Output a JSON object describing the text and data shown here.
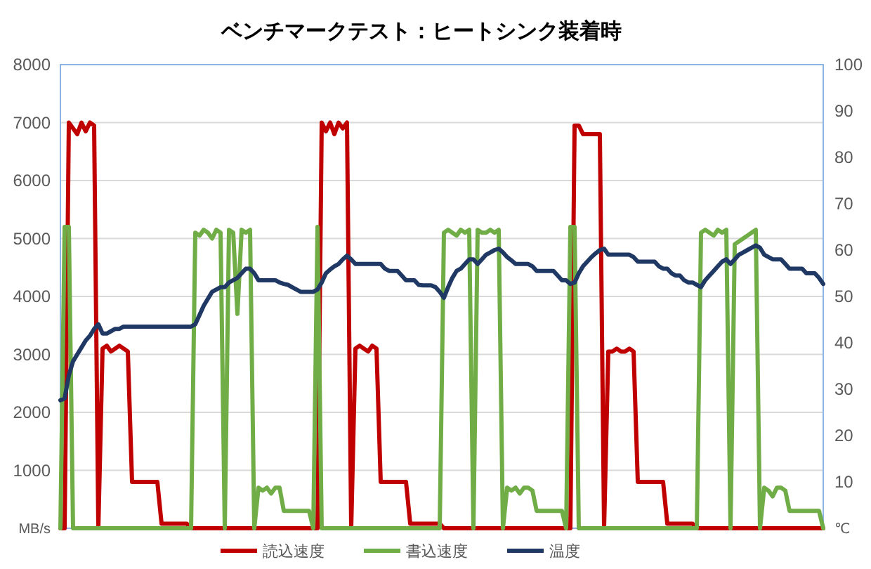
{
  "chart_data": {
    "type": "line",
    "title": "ベンチマークテスト：ヒートシンク装着時",
    "categories": [
      null,
      null,
      null,
      null,
      null,
      null,
      null,
      null,
      null,
      null,
      null,
      null,
      null,
      null,
      null,
      null,
      null,
      null,
      null,
      null,
      null,
      null,
      null,
      null,
      null,
      null,
      null,
      null,
      null,
      null,
      null,
      null,
      null,
      null,
      null,
      null,
      null,
      null,
      null,
      null,
      null,
      null,
      null,
      null,
      null,
      null,
      null,
      null,
      null,
      null,
      null,
      null,
      null,
      null,
      null,
      null,
      null,
      null,
      null,
      null,
      null,
      null,
      null,
      null,
      null,
      null,
      null,
      null,
      null,
      null,
      null,
      null,
      null,
      null,
      null,
      null,
      null,
      null,
      null,
      null,
      null,
      null,
      null,
      null,
      null,
      null,
      null,
      null,
      null,
      null,
      null,
      null,
      null,
      null,
      null,
      null,
      null,
      null,
      null,
      null,
      null,
      null,
      null,
      null,
      null,
      null,
      null,
      null,
      null,
      null,
      null,
      null,
      null,
      null,
      null,
      null,
      null,
      null,
      null,
      null,
      null,
      null,
      null,
      null,
      null,
      null,
      null,
      null,
      null,
      null,
      null,
      null,
      null,
      null,
      null,
      null,
      null,
      null,
      null,
      null,
      null,
      null,
      null,
      null,
      null,
      null,
      null,
      null,
      null,
      null,
      null,
      null,
      null,
      null,
      null,
      null,
      null,
      null,
      null,
      null,
      null,
      null,
      null,
      null,
      null,
      null,
      null,
      null,
      null,
      null,
      null,
      null,
      null,
      null,
      null,
      null,
      null,
      null,
      null,
      null,
      null,
      null
    ],
    "series": [
      {
        "name": "読込速度",
        "color": "#c00000",
        "values": [
          0,
          0,
          7000,
          6900,
          6800,
          7000,
          6850,
          7000,
          6950,
          0,
          3100,
          3150,
          3050,
          3100,
          3150,
          3100,
          3050,
          800,
          800,
          800,
          800,
          800,
          800,
          800,
          80,
          80,
          80,
          80,
          80,
          80,
          80,
          0,
          0,
          0,
          0,
          0,
          0,
          0,
          0,
          0,
          0,
          0,
          0,
          0,
          0,
          0,
          0,
          0,
          0,
          0,
          0,
          0,
          0,
          0,
          0,
          0,
          0,
          0,
          0,
          0,
          0,
          0,
          7000,
          6850,
          7000,
          6800,
          7000,
          6900,
          7000,
          0,
          3100,
          3150,
          3100,
          3050,
          3150,
          3100,
          800,
          800,
          800,
          800,
          800,
          800,
          800,
          80,
          80,
          80,
          80,
          80,
          80,
          80,
          80,
          0,
          0,
          0,
          0,
          0,
          0,
          0,
          0,
          0,
          0,
          0,
          0,
          0,
          0,
          0,
          0,
          0,
          0,
          0,
          0,
          0,
          0,
          0,
          0,
          0,
          0,
          0,
          0,
          0,
          0,
          0,
          6950,
          6950,
          6800,
          6800,
          6800,
          6800,
          6800,
          0,
          3050,
          3050,
          3100,
          3050,
          3050,
          3100,
          3050,
          800,
          800,
          800,
          800,
          800,
          800,
          800,
          80,
          80,
          80,
          80,
          80,
          80,
          80,
          0,
          0,
          0,
          0,
          0,
          0,
          0,
          0,
          0,
          0,
          0,
          0,
          0,
          0,
          0,
          0,
          0,
          0,
          0,
          0,
          0,
          0,
          0,
          0,
          0,
          0,
          0,
          0,
          0,
          0,
          0
        ]
      },
      {
        "name": "書込速度",
        "color": "#70ad47",
        "values": [
          0,
          5200,
          5200,
          0,
          0,
          0,
          0,
          0,
          0,
          0,
          0,
          0,
          0,
          0,
          0,
          0,
          0,
          0,
          0,
          0,
          0,
          0,
          0,
          0,
          0,
          0,
          0,
          0,
          0,
          0,
          0,
          0,
          5100,
          5050,
          5150,
          5100,
          5000,
          5150,
          5100,
          0,
          5150,
          5100,
          3700,
          5150,
          5100,
          5150,
          0,
          700,
          650,
          700,
          600,
          700,
          700,
          300,
          300,
          300,
          300,
          300,
          300,
          300,
          0,
          5200,
          0,
          0,
          0,
          0,
          0,
          0,
          0,
          0,
          0,
          0,
          0,
          0,
          0,
          0,
          0,
          0,
          0,
          0,
          0,
          0,
          0,
          0,
          0,
          0,
          0,
          0,
          0,
          0,
          0,
          5100,
          5150,
          5100,
          5050,
          5150,
          5100,
          5150,
          0,
          5150,
          5100,
          5100,
          5150,
          5100,
          5150,
          0,
          700,
          650,
          700,
          600,
          700,
          700,
          650,
          300,
          300,
          300,
          300,
          300,
          300,
          300,
          0,
          5200,
          5200,
          0,
          0,
          0,
          0,
          0,
          0,
          0,
          0,
          0,
          0,
          0,
          0,
          0,
          0,
          0,
          0,
          0,
          0,
          0,
          0,
          0,
          0,
          0,
          0,
          0,
          0,
          0,
          0,
          0,
          5100,
          5150,
          5100,
          5050,
          5150,
          5100,
          5150,
          0,
          4900,
          4950,
          5000,
          5050,
          5100,
          5150,
          0,
          700,
          650,
          550,
          700,
          700,
          650,
          300,
          300,
          300,
          300,
          300,
          300,
          300,
          300,
          0
        ]
      },
      {
        "name": "温度",
        "color": "#203864",
        "axis": "y2",
        "values": [
          27.6,
          28,
          33,
          36,
          37.5,
          39,
          40.5,
          41.5,
          43,
          44,
          42,
          42,
          42.5,
          43,
          43,
          43.5,
          43.5,
          43.5,
          43.5,
          43.5,
          43.5,
          43.5,
          43.5,
          43.5,
          43.5,
          43.5,
          43.5,
          43.5,
          43.5,
          43.5,
          43.5,
          43.5,
          44,
          46,
          48,
          49.5,
          51,
          51.5,
          52,
          52,
          53,
          53.5,
          54,
          55,
          56,
          56,
          55,
          53.5,
          53.5,
          53.5,
          53.5,
          53.5,
          53,
          52.7,
          52.5,
          52,
          51.5,
          51,
          51,
          51,
          51,
          51.5,
          53,
          55,
          55.8,
          56.5,
          57,
          58,
          58.8,
          58,
          57,
          57,
          57,
          57,
          57,
          57,
          57,
          56,
          55.5,
          55.5,
          55.5,
          54.5,
          53.5,
          53.5,
          53.5,
          52.5,
          52.4,
          52.4,
          52.4,
          52,
          51,
          49.7,
          52,
          54,
          55.5,
          56,
          57,
          58,
          58,
          57,
          58,
          59,
          59.5,
          60,
          60.3,
          59.5,
          58.5,
          57.8,
          57,
          57,
          57,
          57,
          56.5,
          55.5,
          55.5,
          55.5,
          55.5,
          55.5,
          54.5,
          53.5,
          53.5,
          52.7,
          53,
          55,
          56.5,
          57.5,
          58.5,
          59.3,
          60,
          60.3,
          59,
          59,
          59,
          59,
          59,
          59,
          58.5,
          57.5,
          57.5,
          57.5,
          57.5,
          57.5,
          56.5,
          56,
          56,
          55,
          54.5,
          54.5,
          53.5,
          53,
          53,
          52.5,
          52,
          53.5,
          54.5,
          55.5,
          56.5,
          57.5,
          58,
          57,
          58,
          59,
          59.5,
          60,
          60.5,
          61,
          60.5,
          59,
          58.5,
          58,
          58,
          58,
          57,
          56,
          56,
          56,
          56,
          55,
          55,
          55,
          54,
          52.7
        ]
      }
    ],
    "ylim": [
      0,
      8000
    ],
    "yticks": [
      {
        "value": 0,
        "label": "MB/s"
      },
      1000,
      2000,
      3000,
      4000,
      5000,
      6000,
      7000,
      8000
    ],
    "y2lim": [
      0,
      100
    ],
    "y2ticks": [
      {
        "value": 0,
        "label": "℃"
      },
      10,
      20,
      30,
      40,
      50,
      60,
      70,
      80,
      90,
      100
    ],
    "grid": "y",
    "legend": "bottom",
    "marker": "none",
    "line_style": "solid"
  }
}
